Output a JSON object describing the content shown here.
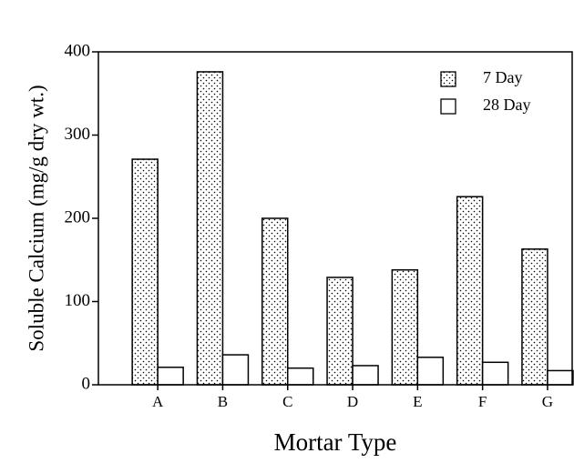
{
  "chart_data": {
    "type": "bar",
    "x_label": "Mortar Type",
    "y_label": "Soluble Calcium (mg/g dry wt.)",
    "categories": [
      "A",
      "B",
      "C",
      "D",
      "E",
      "F",
      "G"
    ],
    "series": [
      {
        "name": "7 Day",
        "color": "#ffffff",
        "pattern": "dots",
        "values": [
          271,
          376,
          200,
          129,
          138,
          226,
          163
        ]
      },
      {
        "name": "28 Day",
        "color": "#ffffff",
        "values": [
          21,
          36,
          20,
          23,
          33,
          27,
          17
        ]
      }
    ],
    "ylim": [
      0,
      400
    ],
    "yticks": [
      0,
      100,
      200,
      300,
      400
    ],
    "legend": "upper right"
  }
}
